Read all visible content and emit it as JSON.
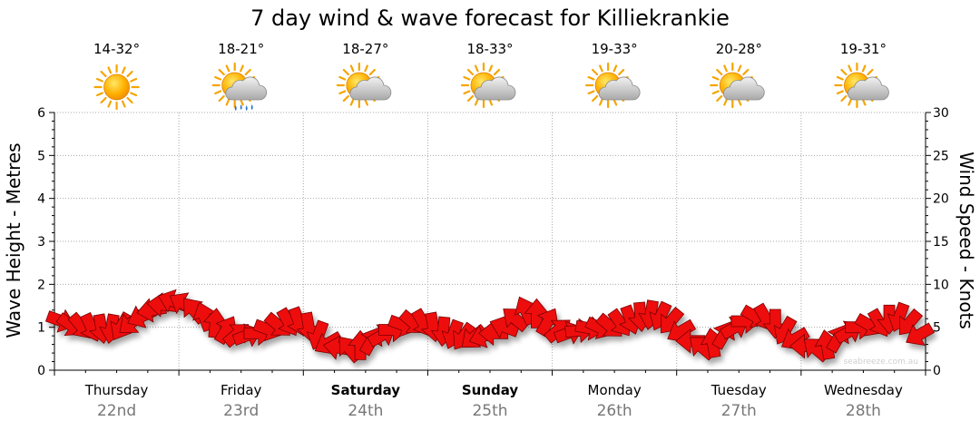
{
  "title": "7 day wind & wave forecast for Killiekrankie",
  "watermark": "seabreeze.com.au",
  "colors": {
    "arrow_fill": "#ee1111",
    "arrow_stroke": "#7a0000",
    "grid": "#a8a8a8",
    "axis": "#000000",
    "date_text": "#777777"
  },
  "days": [
    {
      "name": "Thursday",
      "date": "22nd",
      "bold": false,
      "temp": "14-32°",
      "icon": "sun-icon"
    },
    {
      "name": "Friday",
      "date": "23rd",
      "bold": false,
      "temp": "18-21°",
      "icon": "sun-cloud-rain-icon"
    },
    {
      "name": "Saturday",
      "date": "24th",
      "bold": true,
      "temp": "18-27°",
      "icon": "sun-cloud-icon"
    },
    {
      "name": "Sunday",
      "date": "25th",
      "bold": true,
      "temp": "18-33°",
      "icon": "sun-cloud-icon"
    },
    {
      "name": "Monday",
      "date": "26th",
      "bold": false,
      "temp": "19-33°",
      "icon": "sun-cloud-icon"
    },
    {
      "name": "Tuesday",
      "date": "27th",
      "bold": false,
      "temp": "20-28°",
      "icon": "sun-cloud-icon"
    },
    {
      "name": "Wednesday",
      "date": "28th",
      "bold": false,
      "temp": "19-31°",
      "icon": "sun-cloud-icon"
    }
  ],
  "chart_data": {
    "type": "line",
    "title": "7 day wind & wave forecast for Killiekrankie",
    "ylabel": "Wave Height - Metres",
    "y2label": "Wind Speed - Knots",
    "ylim": [
      0,
      6
    ],
    "y2lim": [
      0,
      30
    ],
    "yticks": [
      "0",
      "1",
      "2",
      "3",
      "4",
      "5",
      "6"
    ],
    "y2ticks": [
      "0",
      "5",
      "10",
      "15",
      "20",
      "25",
      "30"
    ],
    "grid": true,
    "x_days": 7,
    "samples_per_day": 12,
    "series": [
      {
        "marker": "wind-arrow",
        "values": [
          5.8,
          5.3,
          5.2,
          5.1,
          5.0,
          5.0,
          5.2,
          5.6,
          6.3,
          7.0,
          7.6,
          8.0,
          7.7,
          6.9,
          6.1,
          5.3,
          4.6,
          4.1,
          4.0,
          4.3,
          4.8,
          5.3,
          5.7,
          5.8,
          5.2,
          4.2,
          3.2,
          2.6,
          2.4,
          2.7,
          3.3,
          4.0,
          4.7,
          5.3,
          5.6,
          5.6,
          5.2,
          4.7,
          4.3,
          4.0,
          3.9,
          4.0,
          4.3,
          5.0,
          5.9,
          6.8,
          6.4,
          5.5,
          4.6,
          4.3,
          4.6,
          4.9,
          5.0,
          5.2,
          5.6,
          6.0,
          6.4,
          6.6,
          6.4,
          5.8,
          4.6,
          3.4,
          2.6,
          3.0,
          4.0,
          4.9,
          5.7,
          6.3,
          6.2,
          5.6,
          4.7,
          3.7,
          2.8,
          2.4,
          2.8,
          3.6,
          4.4,
          5.0,
          5.3,
          5.6,
          6.1,
          6.3,
          5.6,
          4.2
        ],
        "directions": [
          20,
          35,
          50,
          65,
          80,
          100,
          120,
          140,
          155,
          170,
          185,
          200,
          210,
          230,
          250,
          275,
          300,
          320,
          340,
          0,
          20,
          40,
          60,
          70,
          80,
          110,
          150,
          190,
          230,
          270,
          300,
          330,
          0,
          20,
          40,
          60,
          80,
          95,
          110,
          125,
          140,
          160,
          180,
          200,
          220,
          245,
          270,
          300,
          320,
          340,
          355,
          10,
          25,
          40,
          55,
          70,
          85,
          100,
          115,
          130,
          150,
          180,
          220,
          260,
          300,
          330,
          0,
          30,
          60,
          90,
          120,
          150,
          180,
          220,
          260,
          300,
          330,
          0,
          30,
          60,
          90,
          110,
          130,
          150
        ]
      }
    ]
  }
}
